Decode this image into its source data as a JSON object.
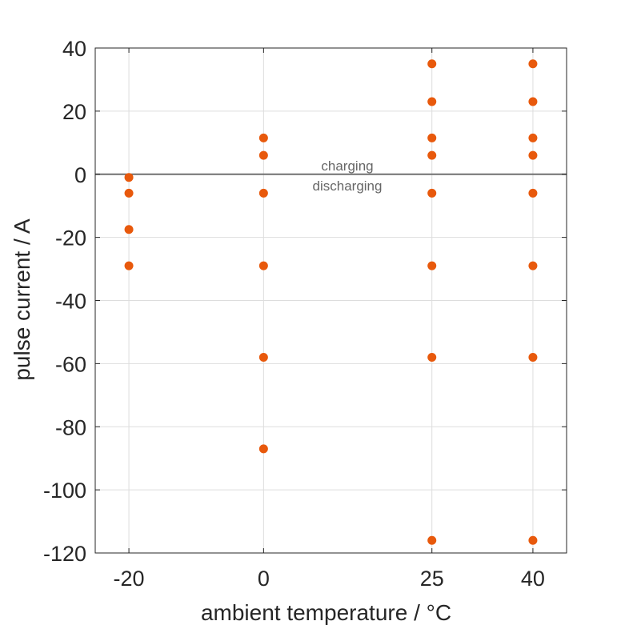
{
  "chart_data": {
    "type": "scatter",
    "title": "",
    "xlabel": "ambient temperature / °C",
    "ylabel": "pulse current / A",
    "x_ticks": [
      -20,
      0,
      25,
      40
    ],
    "x_tick_labels": [
      "-20",
      "0",
      "25",
      "40"
    ],
    "y_ticks": [
      40,
      20,
      0,
      -20,
      -40,
      -60,
      -80,
      -100,
      -120
    ],
    "y_tick_labels": [
      "40",
      "20",
      "0",
      "-20",
      "-40",
      "-60",
      "-80",
      "-100",
      "-120"
    ],
    "xlim": [
      -25,
      45
    ],
    "ylim": [
      -120,
      40
    ],
    "grid": true,
    "marker_color": "#E8590C",
    "reference_line": {
      "y": 0,
      "color": "#707070"
    },
    "annotations": {
      "above": "charging",
      "below": "discharging"
    },
    "series": [
      {
        "points": [
          [
            -20,
            -1
          ],
          [
            -20,
            -6
          ],
          [
            -20,
            -17.5
          ],
          [
            -20,
            -29
          ],
          [
            0,
            11.5
          ],
          [
            0,
            6
          ],
          [
            0,
            -6
          ],
          [
            0,
            -29
          ],
          [
            0,
            -58
          ],
          [
            0,
            -87
          ],
          [
            25,
            35
          ],
          [
            25,
            23
          ],
          [
            25,
            11.5
          ],
          [
            25,
            6
          ],
          [
            25,
            -6
          ],
          [
            25,
            -29
          ],
          [
            25,
            -58
          ],
          [
            25,
            -116
          ],
          [
            40,
            35
          ],
          [
            40,
            23
          ],
          [
            40,
            11.5
          ],
          [
            40,
            6
          ],
          [
            40,
            -6
          ],
          [
            40,
            -29
          ],
          [
            40,
            -58
          ],
          [
            40,
            -116
          ]
        ]
      }
    ]
  }
}
